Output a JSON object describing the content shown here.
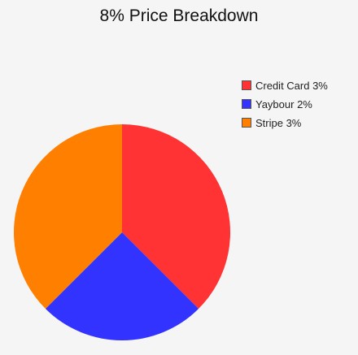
{
  "chart_data": {
    "type": "pie",
    "title": "8% Price Breakdown",
    "categories": [
      "Credit Card 3%",
      "Yaybour 2%",
      "Stripe 3%"
    ],
    "values": [
      3,
      2,
      3
    ],
    "colors": [
      "#ff3333",
      "#3333ff",
      "#ff7f00"
    ],
    "start_angle_deg": 0,
    "direction": "clockwise",
    "legend_position": "top-right"
  }
}
